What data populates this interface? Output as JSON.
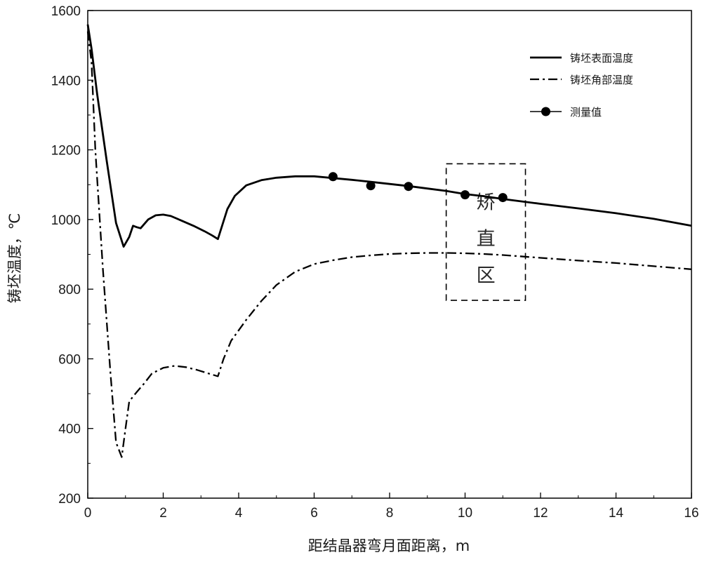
{
  "chart_data": {
    "type": "line",
    "xlabel": "距结晶器弯月面距离，m",
    "ylabel": "铸坯温度，℃",
    "xlim": [
      0,
      16
    ],
    "ylim": [
      200,
      1600
    ],
    "xticks": [
      0,
      2,
      4,
      6,
      8,
      10,
      12,
      14,
      16
    ],
    "yticks": [
      200,
      400,
      600,
      800,
      1000,
      1200,
      1400,
      1600
    ],
    "legend_position": "top-right",
    "grid": false,
    "series": [
      {
        "name": "铸坯表面温度",
        "style": "solid",
        "color": "#000000",
        "points": [
          [
            0,
            1560
          ],
          [
            0.1,
            1490
          ],
          [
            0.25,
            1360
          ],
          [
            0.5,
            1170
          ],
          [
            0.75,
            990
          ],
          [
            0.95,
            922
          ],
          [
            1.1,
            950
          ],
          [
            1.2,
            982
          ],
          [
            1.3,
            978
          ],
          [
            1.4,
            975
          ],
          [
            1.6,
            1000
          ],
          [
            1.8,
            1012
          ],
          [
            2.0,
            1014
          ],
          [
            2.2,
            1010
          ],
          [
            2.5,
            996
          ],
          [
            2.8,
            982
          ],
          [
            3.1,
            966
          ],
          [
            3.3,
            954
          ],
          [
            3.45,
            944
          ],
          [
            3.7,
            1030
          ],
          [
            3.9,
            1068
          ],
          [
            4.2,
            1098
          ],
          [
            4.6,
            1113
          ],
          [
            5.0,
            1120
          ],
          [
            5.5,
            1124
          ],
          [
            6.0,
            1124
          ],
          [
            6.5,
            1119
          ],
          [
            7.0,
            1114
          ],
          [
            7.5,
            1108
          ],
          [
            8.0,
            1102
          ],
          [
            8.5,
            1096
          ],
          [
            9.0,
            1089
          ],
          [
            9.5,
            1082
          ],
          [
            10.0,
            1073
          ],
          [
            10.5,
            1067
          ],
          [
            11.0,
            1059
          ],
          [
            12.0,
            1045
          ],
          [
            13.0,
            1032
          ],
          [
            14.0,
            1018
          ],
          [
            15.0,
            1002
          ],
          [
            16.0,
            982
          ]
        ]
      },
      {
        "name": "铸坯角部温度",
        "style": "dashdot",
        "color": "#000000",
        "points": [
          [
            0,
            1540
          ],
          [
            0.1,
            1450
          ],
          [
            0.2,
            1200
          ],
          [
            0.4,
            860
          ],
          [
            0.6,
            560
          ],
          [
            0.75,
            360
          ],
          [
            0.9,
            318
          ],
          [
            1.0,
            400
          ],
          [
            1.1,
            478
          ],
          [
            1.3,
            505
          ],
          [
            1.5,
            530
          ],
          [
            1.7,
            558
          ],
          [
            2.0,
            574
          ],
          [
            2.3,
            580
          ],
          [
            2.6,
            576
          ],
          [
            2.9,
            568
          ],
          [
            3.2,
            558
          ],
          [
            3.45,
            550
          ],
          [
            3.6,
            600
          ],
          [
            3.8,
            652
          ],
          [
            4.2,
            712
          ],
          [
            4.6,
            766
          ],
          [
            5.0,
            812
          ],
          [
            5.5,
            850
          ],
          [
            6.0,
            872
          ],
          [
            6.5,
            883
          ],
          [
            7.0,
            892
          ],
          [
            7.5,
            897
          ],
          [
            8.0,
            901
          ],
          [
            8.5,
            903
          ],
          [
            9.0,
            904
          ],
          [
            9.5,
            904
          ],
          [
            10.0,
            903
          ],
          [
            10.5,
            901
          ],
          [
            11.0,
            898
          ],
          [
            12.0,
            890
          ],
          [
            13.0,
            882
          ],
          [
            14.0,
            875
          ],
          [
            15.0,
            866
          ],
          [
            16.0,
            857
          ]
        ]
      },
      {
        "name": "测量值",
        "style": "markers",
        "color": "#000000",
        "points": [
          [
            6.5,
            1123
          ],
          [
            7.5,
            1097
          ],
          [
            8.5,
            1095
          ],
          [
            10.0,
            1071
          ],
          [
            11.0,
            1063
          ]
        ]
      }
    ],
    "annotations": [
      {
        "type": "dashed-box",
        "label": "矫直区",
        "x_range": [
          9.5,
          11.6
        ],
        "y_range": [
          768,
          1160
        ]
      }
    ]
  }
}
